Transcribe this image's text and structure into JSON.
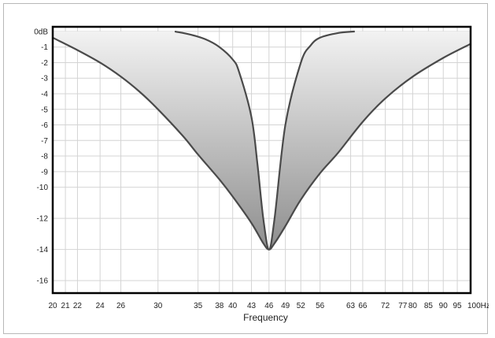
{
  "chart_data": {
    "type": "area",
    "xlabel": "Frequency",
    "ylabel": "",
    "title": "",
    "x_scale": "log",
    "xlim": [
      20,
      100
    ],
    "ylim": [
      -16.8,
      0.3
    ],
    "grid": true,
    "legend": "none",
    "x_ticks": [
      20,
      21,
      22,
      24,
      26,
      30,
      35,
      38,
      40,
      43,
      46,
      49,
      52,
      56,
      63,
      66,
      72,
      77,
      80,
      85,
      90,
      95,
      100
    ],
    "x_tick_labels": [
      "20",
      "21",
      "22",
      "24",
      "26",
      "30",
      "35",
      "38",
      "40",
      "43",
      "46",
      "49",
      "52",
      "56",
      "63",
      "66",
      "72",
      "77",
      "80",
      "85",
      "90",
      "95",
      "100Hz"
    ],
    "y_ticks": [
      0,
      -1,
      -2,
      -3,
      -4,
      -5,
      -6,
      -7,
      -8,
      -9,
      -10,
      -12,
      -14,
      -16
    ],
    "y_tick_labels": [
      "0dB",
      "-1",
      "-2",
      "-3",
      "-4",
      "-5",
      "-6",
      "-7",
      "-8",
      "-9",
      "-10",
      "-12",
      "-14",
      "-16"
    ],
    "series": [
      {
        "role": "wide",
        "x": [
          20,
          22,
          24,
          26,
          28,
          30,
          33,
          35,
          38,
          40,
          43,
          45,
          46,
          47,
          49,
          52,
          56,
          60,
          66,
          72,
          80,
          90,
          100
        ],
        "y": [
          -0.4,
          -1.2,
          -2.0,
          -2.9,
          -3.9,
          -5.0,
          -6.7,
          -7.9,
          -9.5,
          -10.6,
          -12.3,
          -13.6,
          -14.0,
          -13.6,
          -12.5,
          -10.8,
          -9.1,
          -7.8,
          -5.8,
          -4.3,
          -2.9,
          -1.7,
          -0.8
        ]
      },
      {
        "role": "narrow",
        "x": [
          32,
          34,
          36,
          38,
          40,
          41,
          43,
          44,
          45,
          46,
          47,
          49,
          52,
          54,
          56,
          60,
          64
        ],
        "y": [
          0.0,
          -0.2,
          -0.5,
          -1.0,
          -1.8,
          -2.6,
          -5.5,
          -8.5,
          -12.0,
          -14.0,
          -12.0,
          -6.0,
          -2.0,
          -0.9,
          -0.4,
          -0.1,
          0.0
        ]
      }
    ],
    "colors": {
      "curve": "#4a4a4a",
      "grid": "#d4d4d4",
      "fill_top": "#f2f2f2",
      "fill_bottom": "#8e8e8e",
      "plot_border": "#000000",
      "plot_background": "#ffffff"
    }
  }
}
